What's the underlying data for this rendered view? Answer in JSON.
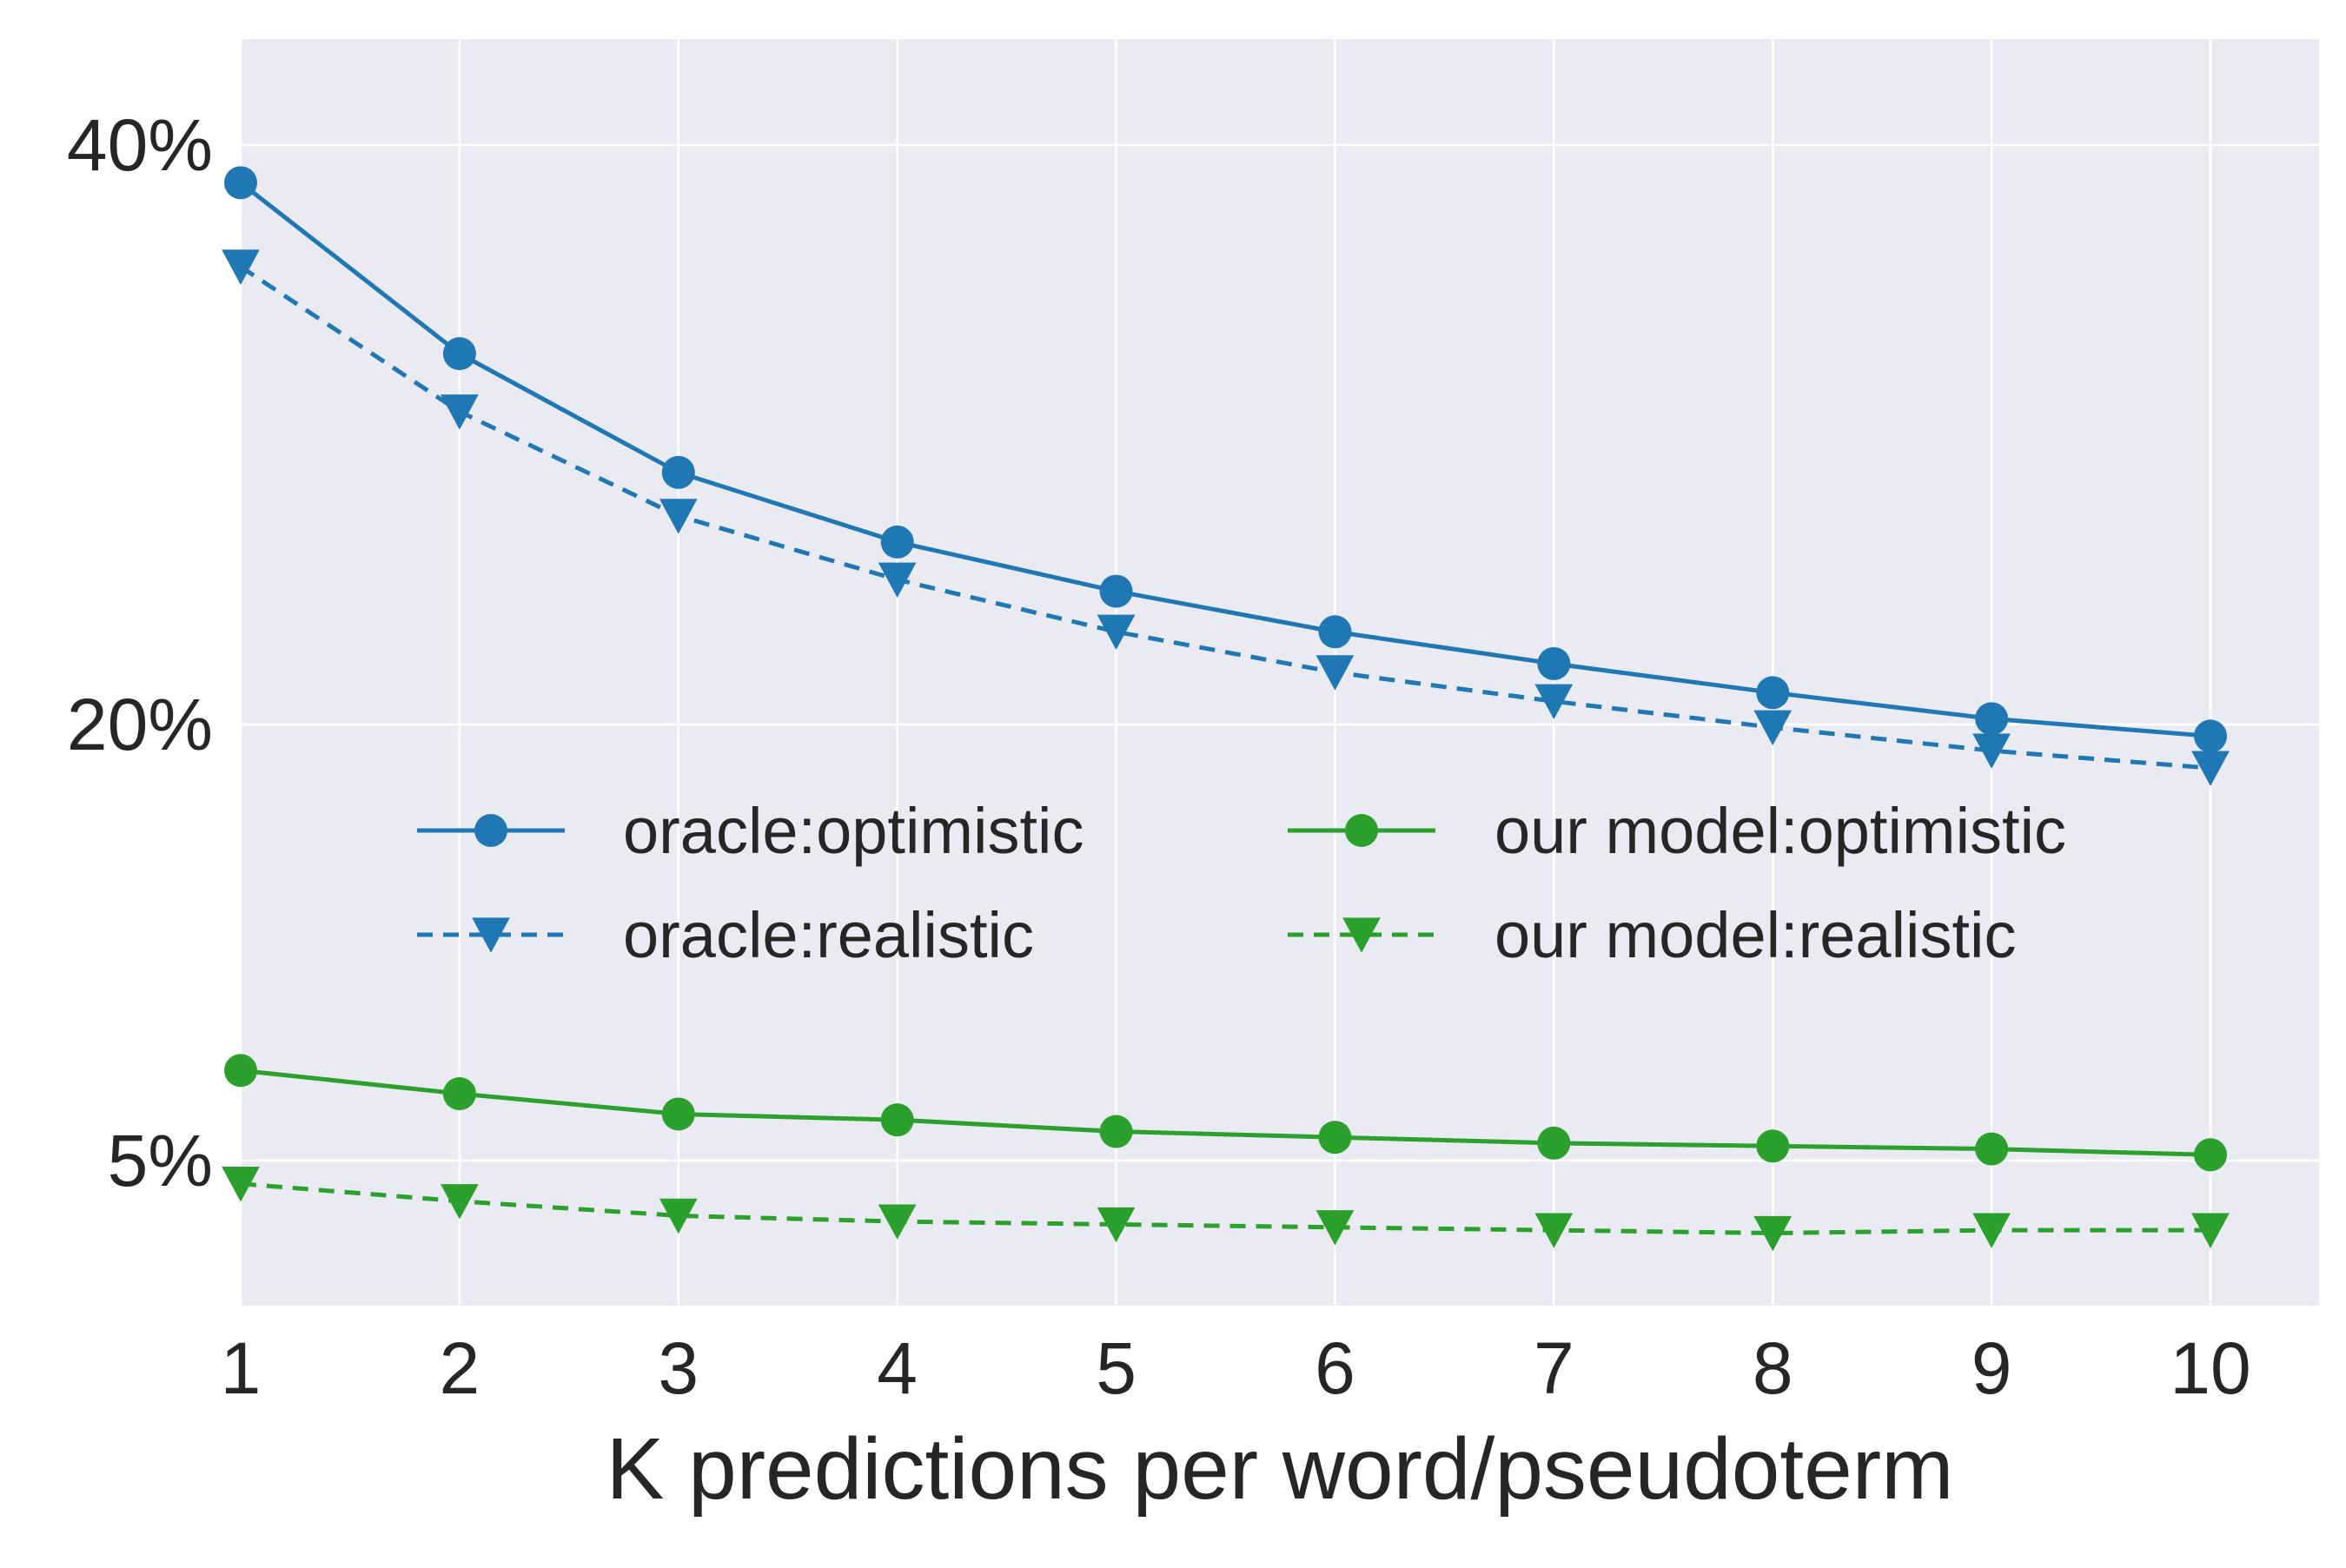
{
  "chart_data": {
    "type": "line",
    "title": "",
    "xlabel": "K predictions per word/pseudoterm",
    "ylabel": "",
    "x": [
      1,
      2,
      3,
      4,
      5,
      6,
      7,
      8,
      9,
      10
    ],
    "xlim": [
      1,
      10.5
    ],
    "ylim": [
      0,
      44
    ],
    "yticks": [
      {
        "value": 5,
        "label": "5%"
      },
      {
        "value": 20,
        "label": "20%"
      },
      {
        "value": 40,
        "label": "40%"
      }
    ],
    "grid": true,
    "legend_position": "center",
    "series": [
      {
        "name": "oracle:optimistic",
        "color": "#1f77b4",
        "linestyle": "solid",
        "marker": "circle",
        "values": [
          38.7,
          32.8,
          28.7,
          26.3,
          24.6,
          23.2,
          22.1,
          21.1,
          20.2,
          19.6
        ]
      },
      {
        "name": "oracle:realistic",
        "color": "#1f77b4",
        "linestyle": "dashed",
        "marker": "triangle-down",
        "values": [
          35.8,
          30.8,
          27.2,
          25.0,
          23.2,
          21.8,
          20.8,
          19.9,
          19.1,
          18.5
        ]
      },
      {
        "name": "our model:optimistic",
        "color": "#2ca02c",
        "linestyle": "solid",
        "marker": "circle",
        "values": [
          8.1,
          7.3,
          6.6,
          6.4,
          6.0,
          5.8,
          5.6,
          5.5,
          5.4,
          5.2
        ]
      },
      {
        "name": "our model:realistic",
        "color": "#2ca02c",
        "linestyle": "dashed",
        "marker": "triangle-down",
        "values": [
          4.2,
          3.6,
          3.1,
          2.9,
          2.8,
          2.7,
          2.6,
          2.5,
          2.6,
          2.6
        ]
      }
    ]
  }
}
